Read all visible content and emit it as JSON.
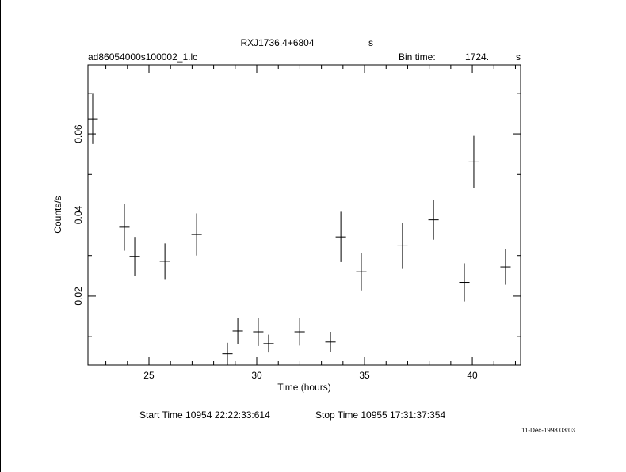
{
  "chart_data": {
    "type": "errorbar",
    "title": "RXJ1736.4+6804",
    "title_suffix": "s",
    "subtitle": "ad86054000s100002_1.lc",
    "bin_time_label": "Bin time:",
    "bin_time": "1724.",
    "bin_time_unit": "s",
    "xlabel": "Time (hours)",
    "ylabel": "Counts/s",
    "start_time": "Start Time 10954 22:22:33:614",
    "stop_time": "Stop Time 10955 17:31:37:354",
    "timestamp": "11-Dec-1998 03:03",
    "x": [
      22.39,
      23.86,
      24.34,
      25.74,
      27.21,
      28.64,
      29.12,
      30.07,
      30.55,
      31.99,
      33.42,
      33.9,
      34.85,
      36.76,
      38.2,
      39.63,
      40.07,
      41.54
    ],
    "xerr": 0.24,
    "series": [
      {
        "color": "#000000",
        "values": [
          0.0637,
          0.037,
          0.0298,
          0.0286,
          0.0352,
          0.0058,
          0.0114,
          0.0112,
          0.0083,
          0.0112,
          0.0087,
          0.0346,
          0.026,
          0.0324,
          0.0388,
          0.0234,
          0.0531,
          0.0272
        ],
        "errors": [
          0.0062,
          0.0058,
          0.0048,
          0.0044,
          0.0052,
          0.0027,
          0.0032,
          0.0035,
          0.0022,
          0.0034,
          0.0025,
          0.0062,
          0.0046,
          0.0057,
          0.0049,
          0.0047,
          0.0064,
          0.0044
        ]
      }
    ],
    "xlim": [
      22.17,
      42.24
    ],
    "xticks": [
      25,
      30,
      35,
      40
    ],
    "xminor": [
      23,
      24,
      26,
      27,
      28,
      29,
      31,
      32,
      33,
      34,
      36,
      37,
      38,
      39,
      41,
      42
    ],
    "ylim": [
      0.003,
      0.077
    ],
    "yticks": [
      0.02,
      0.04,
      0.06
    ],
    "yminor": [
      0.01,
      0.03,
      0.05,
      0.07
    ]
  }
}
